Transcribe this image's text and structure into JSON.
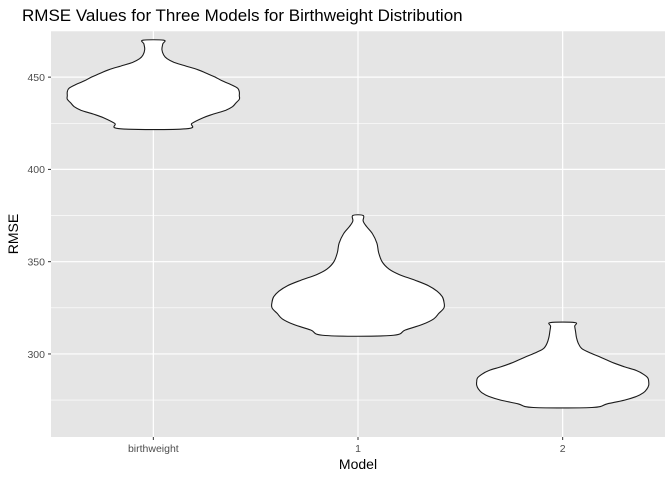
{
  "chart_data": {
    "type": "violin",
    "title": "RMSE Values for Three Models for Birthweight Distribution",
    "xlabel": "Model",
    "ylabel": "RMSE",
    "categories": [
      "birthweight",
      "1",
      "2"
    ],
    "ylim": [
      255,
      475
    ],
    "yticks": [
      300,
      350,
      400,
      450
    ],
    "grid": true,
    "legend": "none",
    "colors": {
      "panel": "#e5e5e5",
      "grid_major": "#ffffff",
      "violin_fill": "#ffffff",
      "violin_stroke": "#1a1a1a",
      "tick_text": "#4d4d4d"
    },
    "series": [
      {
        "category": "birthweight",
        "min": 422,
        "max": 470,
        "profile": [
          [
            422,
            0.38
          ],
          [
            425,
            0.45
          ],
          [
            428,
            0.58
          ],
          [
            430,
            0.7
          ],
          [
            432,
            0.84
          ],
          [
            434,
            0.92
          ],
          [
            436,
            0.96
          ],
          [
            438,
            1.0
          ],
          [
            440,
            1.0
          ],
          [
            442,
            1.0
          ],
          [
            444,
            0.98
          ],
          [
            446,
            0.9
          ],
          [
            448,
            0.8
          ],
          [
            450,
            0.72
          ],
          [
            452,
            0.62
          ],
          [
            454,
            0.52
          ],
          [
            456,
            0.38
          ],
          [
            458,
            0.24
          ],
          [
            460,
            0.16
          ],
          [
            462,
            0.12
          ],
          [
            465,
            0.1
          ],
          [
            468,
            0.11
          ],
          [
            470,
            0.12
          ]
        ]
      },
      {
        "category": "1",
        "min": 310,
        "max": 375,
        "profile": [
          [
            310,
            0.38
          ],
          [
            313,
            0.55
          ],
          [
            316,
            0.75
          ],
          [
            319,
            0.88
          ],
          [
            322,
            0.94
          ],
          [
            325,
            1.0
          ],
          [
            328,
            1.0
          ],
          [
            331,
            0.98
          ],
          [
            334,
            0.92
          ],
          [
            337,
            0.82
          ],
          [
            340,
            0.66
          ],
          [
            343,
            0.48
          ],
          [
            346,
            0.36
          ],
          [
            350,
            0.28
          ],
          [
            355,
            0.24
          ],
          [
            360,
            0.22
          ],
          [
            365,
            0.17
          ],
          [
            369,
            0.1
          ],
          [
            372,
            0.06
          ],
          [
            375,
            0.06
          ]
        ]
      },
      {
        "category": "2",
        "min": 271,
        "max": 317,
        "profile": [
          [
            271,
            0.34
          ],
          [
            273,
            0.52
          ],
          [
            275,
            0.72
          ],
          [
            277,
            0.86
          ],
          [
            279,
            0.94
          ],
          [
            281,
            0.98
          ],
          [
            283,
            1.0
          ],
          [
            285,
            1.0
          ],
          [
            287,
            0.99
          ],
          [
            289,
            0.94
          ],
          [
            291,
            0.86
          ],
          [
            293,
            0.72
          ],
          [
            295,
            0.6
          ],
          [
            297,
            0.5
          ],
          [
            299,
            0.4
          ],
          [
            301,
            0.3
          ],
          [
            303,
            0.22
          ],
          [
            306,
            0.18
          ],
          [
            309,
            0.16
          ],
          [
            312,
            0.15
          ],
          [
            315,
            0.14
          ],
          [
            317,
            0.14
          ]
        ]
      }
    ]
  }
}
